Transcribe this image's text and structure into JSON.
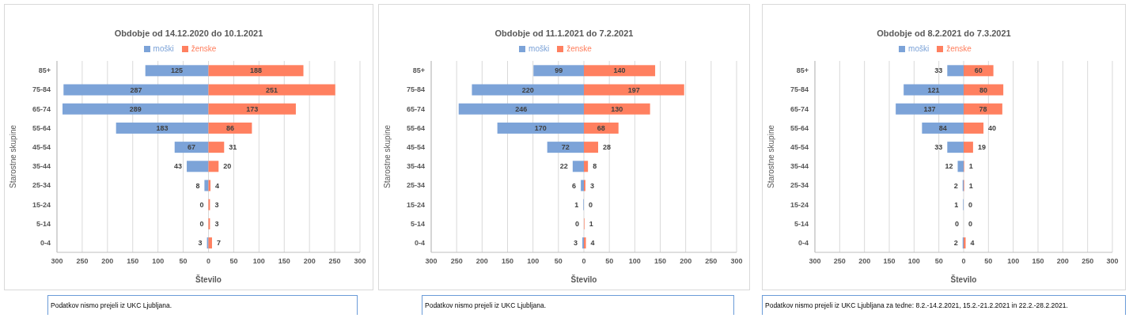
{
  "chart_data": [
    {
      "type": "bar",
      "orientation": "horizontal",
      "title": "Obdobje od 14.12.2020 do 10.1.2021",
      "xlabel": "Število",
      "ylabel": "Starostne skupine",
      "legend": "top",
      "grid": "x",
      "categories": [
        "85+",
        "75-84",
        "65-74",
        "55-64",
        "45-54",
        "35-44",
        "25-34",
        "15-24",
        "5-14",
        "0-4"
      ],
      "series": [
        {
          "name": "moški",
          "color": "#7ca3d8",
          "values": [
            125,
            287,
            289,
            183,
            67,
            43,
            8,
            0,
            0,
            3
          ],
          "base": [
            -125,
            -287,
            -289,
            -183,
            -67,
            -43,
            -8,
            null,
            null,
            -3
          ],
          "data_labels": true
        },
        {
          "name": "ženske",
          "color": "#ff8060",
          "values": [
            188,
            251,
            173,
            86,
            31,
            20,
            4,
            3,
            3,
            7
          ],
          "data_labels": true
        }
      ],
      "xlim": [
        -300,
        300
      ],
      "xticks": [
        {
          "value": -300,
          "label": "300"
        },
        {
          "value": -250,
          "label": "250"
        },
        {
          "value": -200,
          "label": "200"
        },
        {
          "value": -150,
          "label": "150"
        },
        {
          "value": -100,
          "label": "100"
        },
        {
          "value": -50,
          "label": "50"
        },
        0,
        50,
        100,
        150,
        200,
        250,
        300
      ],
      "annotations": [
        "Podatkov nismo prejeli iz UKC Ljubljana."
      ]
    },
    {
      "type": "bar",
      "orientation": "horizontal",
      "title": "Obdobje od 11.1.2021 do 7.2.2021",
      "xlabel": "Število",
      "ylabel": "Starostne skupine",
      "legend": "top",
      "grid": "x",
      "categories": [
        "85+",
        "75-84",
        "65-74",
        "55-64",
        "45-54",
        "35-44",
        "25-34",
        "15-24",
        "5-14",
        "0-4"
      ],
      "series": [
        {
          "name": "moški",
          "color": "#7ca3d8",
          "values": [
            99,
            220,
            246,
            170,
            72,
            22,
            6,
            1,
            0,
            3
          ],
          "base": [
            -99,
            -220,
            -246,
            -170,
            -72,
            -22,
            -6,
            -1,
            null,
            -3
          ],
          "data_labels": true
        },
        {
          "name": "ženske",
          "color": "#ff8060",
          "values": [
            140,
            197,
            130,
            68,
            28,
            8,
            3,
            0,
            1,
            4
          ],
          "data_labels": true
        }
      ],
      "xlim": [
        -300,
        300
      ],
      "xticks": [
        {
          "value": -300,
          "label": "300"
        },
        {
          "value": -250,
          "label": "250"
        },
        {
          "value": -200,
          "label": "200"
        },
        {
          "value": -150,
          "label": "150"
        },
        {
          "value": -100,
          "label": "100"
        },
        {
          "value": -50,
          "label": "50"
        },
        0,
        50,
        100,
        150,
        200,
        250,
        300
      ],
      "annotations": [
        "Podatkov nismo prejeli iz UKC Ljubljana."
      ]
    },
    {
      "type": "bar",
      "orientation": "horizontal",
      "title": "Obdobje od 8.2.2021 do 7.3.2021",
      "xlabel": "Število",
      "ylabel": "Starostne skupine",
      "legend": "top",
      "grid": "x",
      "categories": [
        "85+",
        "75-84",
        "65-74",
        "55-64",
        "45-54",
        "35-44",
        "25-34",
        "15-24",
        "5-14",
        "0-4"
      ],
      "series": [
        {
          "name": "moški",
          "color": "#7ca3d8",
          "values": [
            33,
            121,
            137,
            84,
            33,
            12,
            2,
            1,
            0,
            2
          ],
          "base": [
            -33,
            -121,
            -137,
            -84,
            -33,
            -12,
            -2,
            -1,
            null,
            -2
          ],
          "data_labels": true
        },
        {
          "name": "ženske",
          "color": "#ff8060",
          "values": [
            60,
            80,
            78,
            40,
            19,
            1,
            1,
            0,
            0,
            4
          ],
          "data_labels": true
        }
      ],
      "xlim": [
        -300,
        300
      ],
      "xticks": [
        {
          "value": -300,
          "label": "300"
        },
        {
          "value": -250,
          "label": "250"
        },
        {
          "value": -200,
          "label": "200"
        },
        {
          "value": -150,
          "label": "150"
        },
        {
          "value": -100,
          "label": "100"
        },
        {
          "value": -50,
          "label": "50"
        },
        0,
        50,
        100,
        150,
        200,
        250,
        300
      ],
      "annotations": [
        "Podatkov nismo prejeli iz UKC Ljubljana za tedne: 8.2.-14.2.2021, 15.2.-21.2.2021 in 22.2.-28.2.2021."
      ]
    }
  ]
}
